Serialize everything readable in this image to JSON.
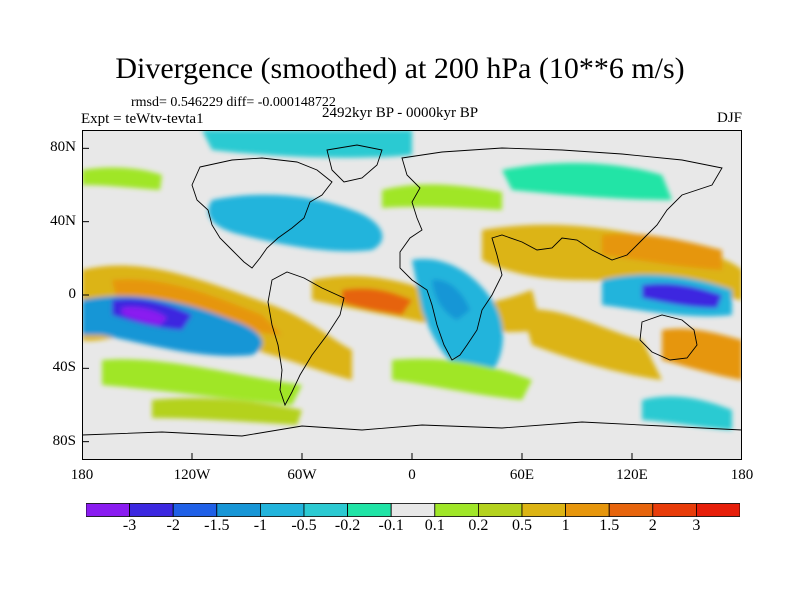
{
  "title": "Divergence (smoothed) at 200 hPa (10**6 m/s)",
  "stats": "rmsd= 0.546229 diff= -0.000148722",
  "experiment": "Expt = teWtv-tevta1",
  "period": "2492kyr BP - 0000kyr BP",
  "season": "DJF",
  "map": {
    "projection": "cylindrical equidistant",
    "lon_range": [
      -180,
      180
    ],
    "lat_range": [
      -90,
      90
    ],
    "ocean_background": "#e8e8e8",
    "coastline_color": "#000000"
  },
  "y_axis": {
    "ticks": [
      "80N",
      "40N",
      "0",
      "40S",
      "80S"
    ],
    "values": [
      80,
      40,
      0,
      -40,
      -80
    ]
  },
  "x_axis": {
    "ticks": [
      "180",
      "120W",
      "60W",
      "0",
      "60E",
      "120E",
      "180"
    ],
    "values": [
      -180,
      -120,
      -60,
      0,
      60,
      120,
      180
    ]
  },
  "colorbar": {
    "colors": [
      "#8a1cf0",
      "#3c28e0",
      "#2060e6",
      "#1896d6",
      "#22b4dc",
      "#2ccad2",
      "#20e4a6",
      "#e8e8e8",
      "#a0e628",
      "#b4d21e",
      "#dcb414",
      "#e6960c",
      "#e6640c",
      "#e83c0a",
      "#e61e0a"
    ],
    "labels": [
      "-3",
      "-2",
      "-1.5",
      "-1",
      "-0.5",
      "-0.2",
      "-0.1",
      "0.1",
      "0.2",
      "0.5",
      "1",
      "1.5",
      "2",
      "3"
    ]
  }
}
